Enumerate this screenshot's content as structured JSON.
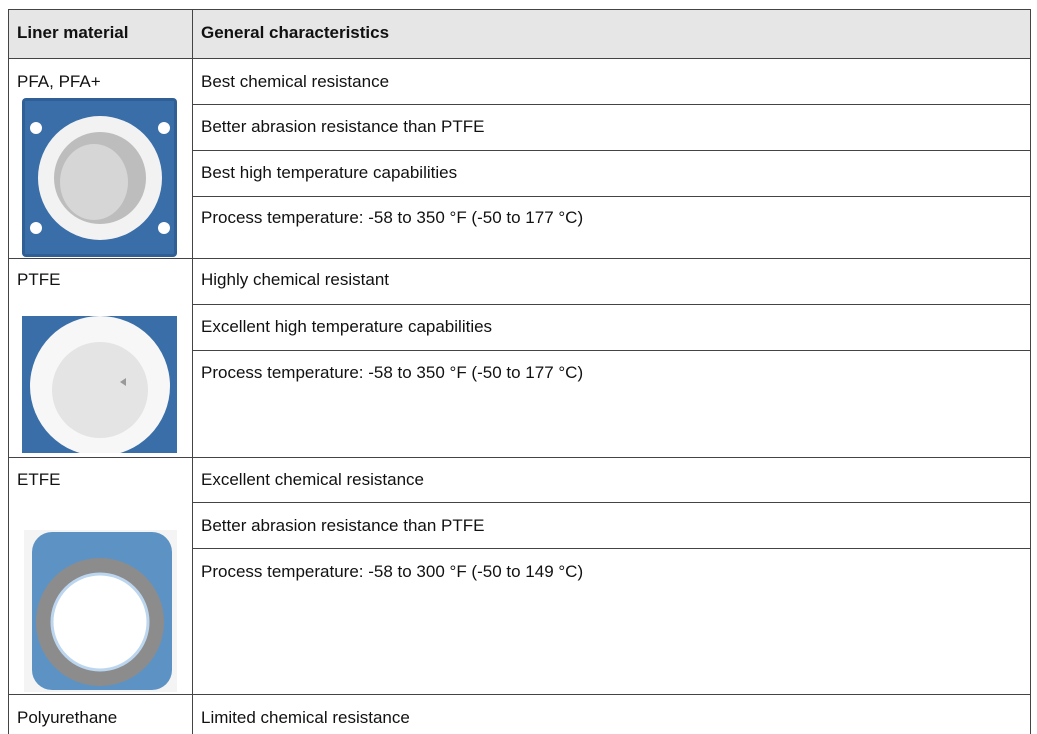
{
  "table": {
    "header": [
      "Liner material",
      "General characteristics"
    ],
    "rows": [
      {
        "material": "PFA, PFA+",
        "characteristics": [
          "Best chemical resistance",
          "Better abrasion resistance than PTFE",
          "Best high temperature capabilities",
          "Process temperature: -58 to 350 °F (-50 to 177 °C)"
        ]
      },
      {
        "material": "PTFE",
        "characteristics": [
          "Highly chemical resistant",
          "Excellent high temperature capabilities",
          "Process temperature: -58 to 350 °F (-50 to 177 °C)"
        ]
      },
      {
        "material": "ETFE",
        "characteristics": [
          "Excellent chemical resistance",
          "Better abrasion resistance than PTFE",
          "Process temperature: -58 to 300 °F (-50 to 149 °C)"
        ]
      },
      {
        "material": "Polyurethane",
        "characteristics": [
          "Limited chemical resistance"
        ]
      }
    ]
  }
}
